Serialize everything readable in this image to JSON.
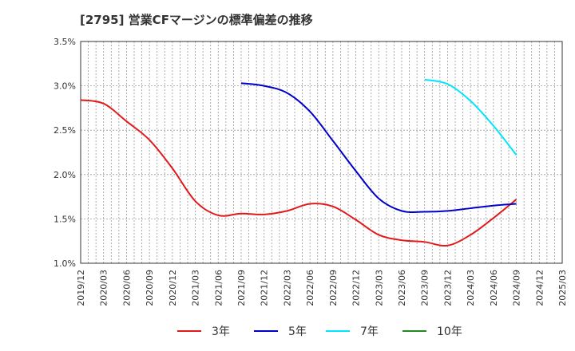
{
  "chart_data": {
    "type": "line",
    "title": "[2795]  営業CFマージンの標準偏差の推移",
    "xlabel": "",
    "ylabel": "",
    "ylim": [
      1.0,
      3.5
    ],
    "y_ticks": [
      "1.0%",
      "1.5%",
      "2.0%",
      "2.5%",
      "3.0%",
      "3.5%"
    ],
    "x_ticks": [
      "2019/12",
      "2020/03",
      "2020/06",
      "2020/09",
      "2020/12",
      "2021/03",
      "2021/06",
      "2021/09",
      "2021/12",
      "2022/03",
      "2022/06",
      "2022/09",
      "2022/12",
      "2023/03",
      "2023/06",
      "2023/09",
      "2023/12",
      "2024/03",
      "2024/06",
      "2024/09",
      "2024/12",
      "2025/03"
    ],
    "grid": true,
    "legend_position": "bottom",
    "series": [
      {
        "name": "3年",
        "color": "#e31a1c",
        "x": [
          "2019/12",
          "2020/03",
          "2020/06",
          "2020/09",
          "2020/12",
          "2021/03",
          "2021/06",
          "2021/09",
          "2021/12",
          "2022/03",
          "2022/06",
          "2022/09",
          "2022/12",
          "2023/03",
          "2023/06",
          "2023/09",
          "2023/12",
          "2024/03",
          "2024/06",
          "2024/09"
        ],
        "values": [
          2.84,
          2.8,
          2.6,
          2.39,
          2.07,
          1.7,
          1.54,
          1.56,
          1.55,
          1.59,
          1.67,
          1.64,
          1.49,
          1.32,
          1.26,
          1.24,
          1.2,
          1.32,
          1.51,
          1.72
        ]
      },
      {
        "name": "5年",
        "color": "#0000cc",
        "x": [
          "2021/09",
          "2021/12",
          "2022/03",
          "2022/06",
          "2022/09",
          "2022/12",
          "2023/03",
          "2023/06",
          "2023/09",
          "2023/12",
          "2024/03",
          "2024/06",
          "2024/09"
        ],
        "values": [
          3.03,
          3.0,
          2.92,
          2.71,
          2.38,
          2.04,
          1.73,
          1.59,
          1.58,
          1.59,
          1.62,
          1.65,
          1.67
        ]
      },
      {
        "name": "7年",
        "color": "#00e5ff",
        "x": [
          "2023/09",
          "2023/12",
          "2024/03",
          "2024/06",
          "2024/09"
        ],
        "values": [
          3.07,
          3.02,
          2.83,
          2.55,
          2.22
        ]
      },
      {
        "name": "10年",
        "color": "#228b22",
        "x": [],
        "values": []
      }
    ]
  }
}
